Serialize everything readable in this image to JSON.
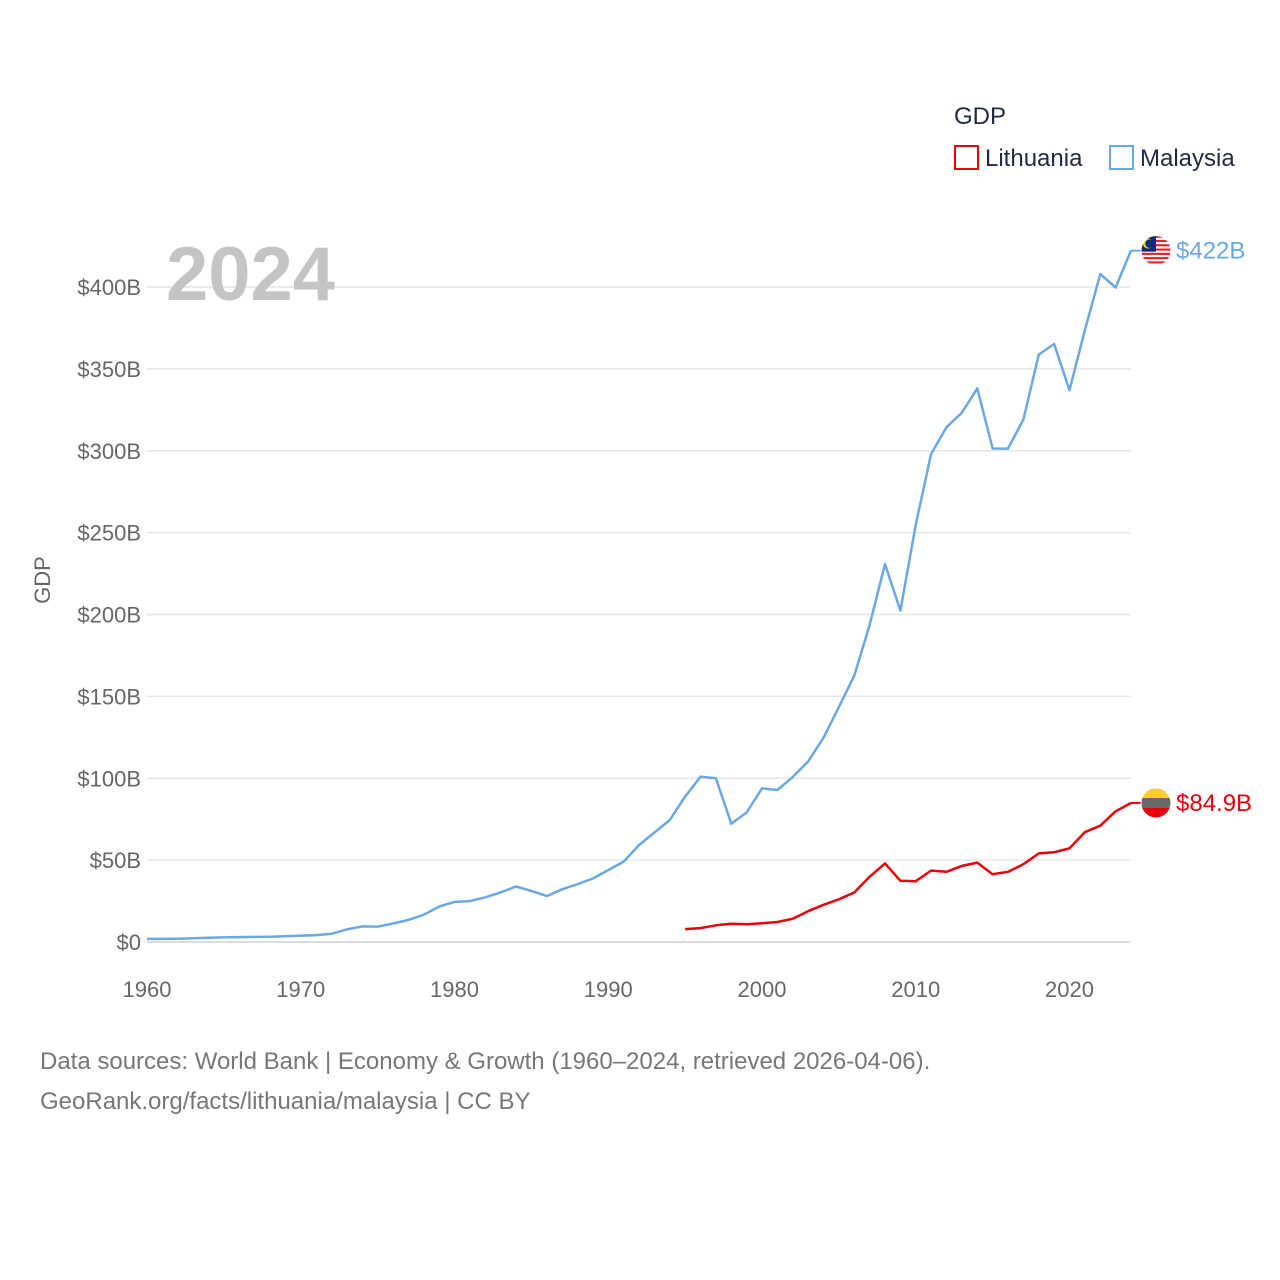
{
  "chart_data": {
    "type": "line",
    "title": "",
    "year_overlay": "2024",
    "ylabel": "GDP",
    "xlabel": "",
    "xlim": [
      1960,
      2024
    ],
    "ylim": [
      0,
      430
    ],
    "y_unit": "billions USD",
    "y_ticks": [
      0,
      50,
      100,
      150,
      200,
      250,
      300,
      350,
      400
    ],
    "y_tick_labels": [
      "$0",
      "$50B",
      "$100B",
      "$150B",
      "$200B",
      "$250B",
      "$300B",
      "$350B",
      "$400B"
    ],
    "x_ticks": [
      1960,
      1970,
      1980,
      1990,
      2000,
      2010,
      2020
    ],
    "x_tick_labels": [
      "1960",
      "1970",
      "1980",
      "1990",
      "2000",
      "2010",
      "2020"
    ],
    "legend": {
      "title": "GDP",
      "position": "top-right"
    },
    "series": [
      {
        "name": "Lithuania",
        "color": "#e8000b",
        "end_label": "$84.9B",
        "x": [
          1995,
          1996,
          1997,
          1998,
          1999,
          2000,
          2001,
          2002,
          2003,
          2004,
          2005,
          2006,
          2007,
          2008,
          2009,
          2010,
          2011,
          2012,
          2013,
          2014,
          2015,
          2016,
          2017,
          2018,
          2019,
          2020,
          2021,
          2022,
          2023,
          2024
        ],
        "values": [
          7.9,
          8.5,
          10.2,
          11.1,
          10.9,
          11.4,
          12.2,
          14.2,
          18.8,
          22.7,
          26.1,
          30.2,
          39.8,
          48.0,
          37.4,
          37.1,
          43.6,
          42.9,
          46.5,
          48.5,
          41.4,
          42.8,
          47.5,
          54.1,
          54.8,
          57.2,
          67.1,
          71.0,
          79.8,
          84.9
        ]
      },
      {
        "name": "Malaysia",
        "color": "#6aa8e4",
        "end_label": "$422B",
        "x": [
          1960,
          1961,
          1962,
          1963,
          1964,
          1965,
          1966,
          1967,
          1968,
          1969,
          1970,
          1971,
          1972,
          1973,
          1974,
          1975,
          1976,
          1977,
          1978,
          1979,
          1980,
          1981,
          1982,
          1983,
          1984,
          1985,
          1986,
          1987,
          1988,
          1989,
          1990,
          1991,
          1992,
          1993,
          1994,
          1995,
          1996,
          1997,
          1998,
          1999,
          2000,
          2001,
          2002,
          2003,
          2004,
          2005,
          2006,
          2007,
          2008,
          2009,
          2010,
          2011,
          2012,
          2013,
          2014,
          2015,
          2016,
          2017,
          2018,
          2019,
          2020,
          2021,
          2022,
          2023,
          2024
        ],
        "values": [
          1.9,
          1.9,
          2.0,
          2.3,
          2.6,
          2.8,
          3.0,
          3.1,
          3.2,
          3.5,
          3.9,
          4.2,
          5.0,
          7.7,
          9.5,
          9.4,
          11.3,
          13.5,
          16.7,
          21.6,
          24.5,
          25.0,
          27.3,
          30.3,
          33.9,
          31.2,
          28.0,
          32.2,
          35.3,
          38.8,
          44.0,
          49.1,
          59.2,
          66.9,
          74.5,
          88.8,
          100.9,
          100.0,
          72.2,
          79.1,
          93.8,
          92.8,
          100.8,
          110.2,
          124.7,
          143.5,
          162.7,
          193.5,
          230.8,
          202.3,
          255.0,
          298.0,
          314.4,
          323.3,
          338.1,
          301.4,
          301.3,
          319.1,
          358.8,
          365.2,
          337.0,
          373.8,
          407.9,
          399.7,
          422.2
        ]
      }
    ]
  },
  "footer": {
    "line1": "Data sources: World Bank | Economy & Growth (1960–2024, retrieved 2026-04-06).",
    "line2": "GeoRank.org/facts/lithuania/malaysia | CC BY"
  }
}
